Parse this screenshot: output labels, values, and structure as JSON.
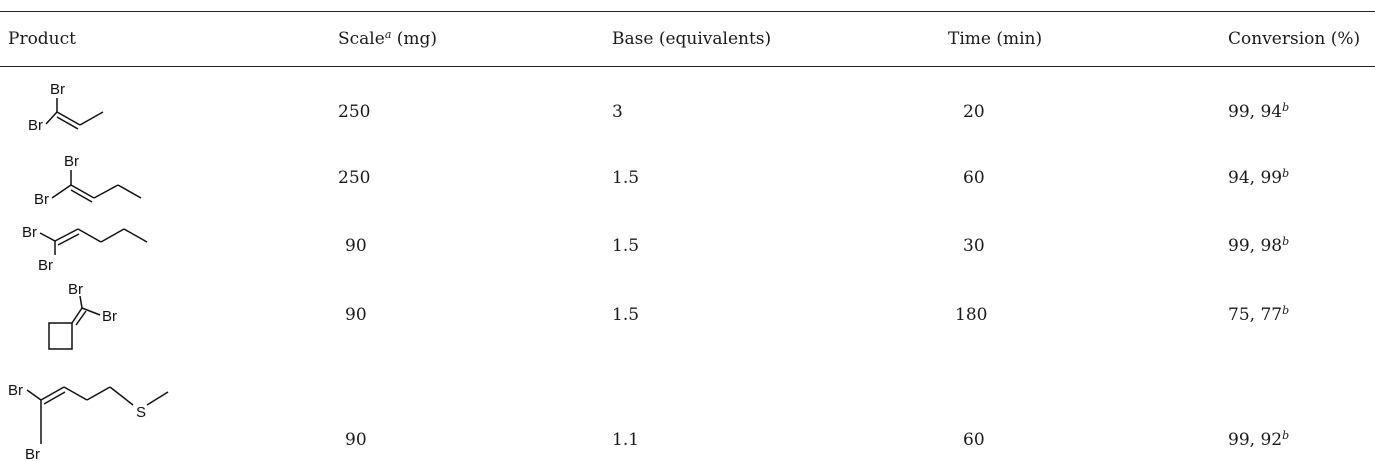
{
  "headers": {
    "product": "Product",
    "scale": "Scale",
    "scale_sup": "a",
    "scale_unit": " (mg)",
    "base": "Base (equivalents)",
    "time": "Time (min)",
    "conversion": "Conversion (%)"
  },
  "rows": [
    {
      "atoms": {
        "br1": "Br",
        "br2": "Br"
      },
      "scale": "250",
      "base": "3",
      "time": "20",
      "conversion": "99, 94",
      "conversion_sup": "b"
    },
    {
      "atoms": {
        "br1": "Br",
        "br2": "Br"
      },
      "scale": "250",
      "base": "1.5",
      "time": "60",
      "conversion": "94, 99",
      "conversion_sup": "b"
    },
    {
      "atoms": {
        "br1": "Br",
        "br2": "Br"
      },
      "scale": "90",
      "base": "1.5",
      "time": "30",
      "conversion": "99, 98",
      "conversion_sup": "b"
    },
    {
      "atoms": {
        "br1": "Br",
        "br2": "Br"
      },
      "scale": "90",
      "base": "1.5",
      "time": "180",
      "conversion": "75, 77",
      "conversion_sup": "b"
    },
    {
      "atoms": {
        "br1": "Br",
        "br2": "Br",
        "s": "S"
      },
      "scale": "90",
      "base": "1.1",
      "time": "60",
      "conversion": "99, 92",
      "conversion_sup": "b"
    }
  ]
}
